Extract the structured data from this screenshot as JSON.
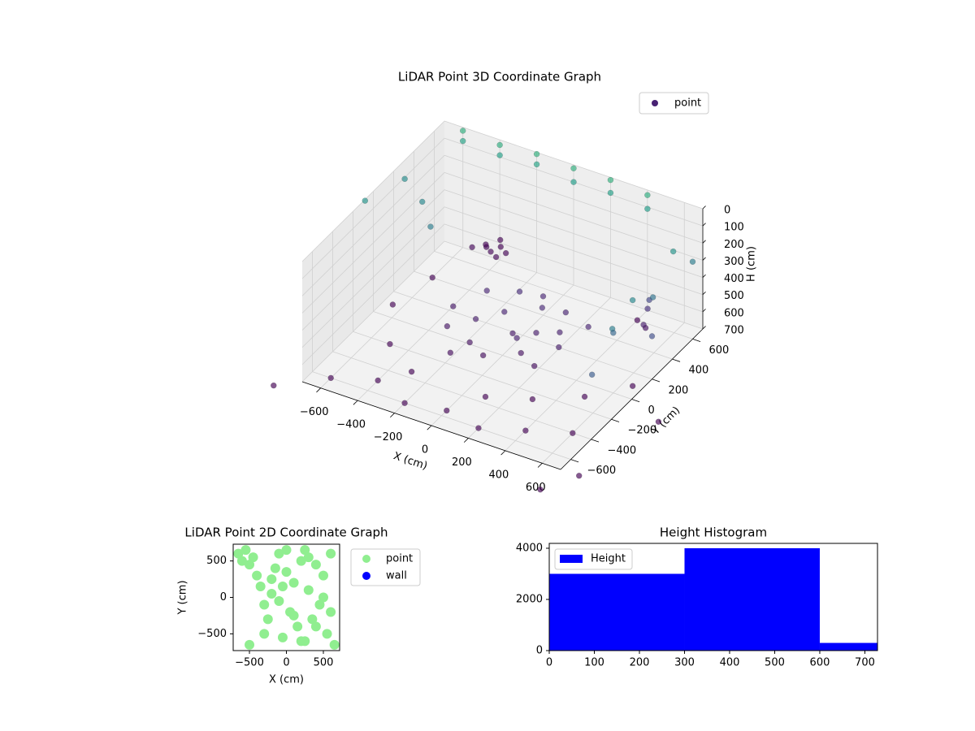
{
  "chart_data": [
    {
      "type": "scatter3d",
      "title": "LiDAR Point 3D Coordinate Graph",
      "xlabel": "X (cm)",
      "ylabel": "Y (cm)",
      "zlabel": "H (cm)",
      "xlim": [
        -700,
        700
      ],
      "ylim": [
        -700,
        700
      ],
      "zlim": [
        700,
        0
      ],
      "xticks": [
        {
          "value": -600,
          "label": "−600"
        },
        {
          "value": -400,
          "label": "−400"
        },
        {
          "value": -200,
          "label": "−200"
        },
        0,
        200,
        400,
        600
      ],
      "yticks": [
        {
          "value": -600,
          "label": "−600"
        },
        {
          "value": -400,
          "label": "−400"
        },
        {
          "value": -200,
          "label": "−200"
        },
        0,
        200,
        400,
        600
      ],
      "zticks": [
        0,
        100,
        200,
        300,
        400,
        500,
        600,
        700
      ],
      "grid": true,
      "colormap": "viridis",
      "legend": "upper right",
      "series": [
        {
          "name": "point",
          "color": "#482173",
          "x": [
            -300,
            -200,
            -100,
            0,
            100,
            200,
            -250,
            150,
            -50,
            50,
            -150,
            250,
            0,
            -350,
            300,
            -100,
            100,
            -200,
            200,
            50,
            -500,
            -450,
            -550,
            -400,
            -480,
            -420,
            -520,
            -460,
            500,
            500,
            520,
            500,
            -600,
            -400,
            -200,
            0,
            200,
            400,
            600,
            -500,
            -300,
            100,
            300,
            500,
            650,
            -650,
            -600,
            400,
            -800,
            800,
            700,
            900,
            -600,
            -400,
            -200,
            0,
            200,
            400,
            -600,
            -400,
            -200,
            0,
            200,
            400,
            -800,
            -750,
            -600,
            -500,
            650,
            650,
            650,
            650,
            700,
            650,
            600,
            700
          ],
          "y": [
            0,
            100,
            200,
            100,
            0,
            200,
            300,
            350,
            -100,
            300,
            -50,
            100,
            400,
            150,
            300,
            350,
            150,
            -150,
            -50,
            50,
            750,
            800,
            700,
            760,
            850,
            700,
            780,
            720,
            500,
            520,
            500,
            480,
            -600,
            -500,
            -600,
            -550,
            -600,
            -500,
            -400,
            -200,
            -350,
            -350,
            -250,
            -100,
            100,
            100,
            400,
            600,
            -800,
            -700,
            -900,
            -100,
            700,
            700,
            700,
            700,
            700,
            700,
            700,
            700,
            700,
            700,
            700,
            700,
            100,
            400,
            300,
            200,
            -100,
            100,
            300,
            500,
            600,
            -300,
            0,
            200
          ],
          "z": [
            640,
            620,
            600,
            630,
            650,
            610,
            590,
            600,
            660,
            580,
            650,
            620,
            590,
            630,
            600,
            570,
            620,
            670,
            660,
            610,
            690,
            700,
            680,
            695,
            700,
            690,
            700,
            685,
            650,
            550,
            480,
            620,
            700,
            700,
            700,
            700,
            700,
            700,
            700,
            700,
            700,
            700,
            700,
            700,
            700,
            700,
            700,
            700,
            700,
            700,
            700,
            700,
            20,
            30,
            10,
            20,
            15,
            30,
            80,
            90,
            70,
            100,
            90,
            110,
            150,
            180,
            200,
            250,
            250,
            200,
            300,
            150,
            250,
            400,
            350,
            450
          ]
        }
      ]
    },
    {
      "type": "scatter",
      "title": "LiDAR Point 2D Coordinate Graph",
      "xlabel": "X (cm)",
      "ylabel": "Y (cm)",
      "xlim": [
        -720,
        720
      ],
      "ylim": [
        -730,
        730
      ],
      "xticks": [
        {
          "value": -500,
          "label": "−500"
        },
        0,
        500
      ],
      "yticks": [
        {
          "value": -500,
          "label": "−500"
        },
        0,
        500
      ],
      "legend": "outside right",
      "series": [
        {
          "name": "point",
          "color": "#90ee90",
          "x": [
            -650,
            -600,
            -550,
            -500,
            -450,
            -400,
            -350,
            -300,
            -250,
            -200,
            -150,
            -100,
            -50,
            0,
            50,
            100,
            150,
            200,
            250,
            300,
            350,
            400,
            450,
            500,
            550,
            600,
            650,
            -300,
            -100,
            100,
            300,
            500,
            -200,
            0,
            200,
            400,
            -500,
            600,
            250,
            -50
          ],
          "y": [
            600,
            500,
            650,
            450,
            550,
            300,
            150,
            -100,
            -300,
            50,
            400,
            600,
            -550,
            650,
            -200,
            200,
            -400,
            500,
            -600,
            100,
            -300,
            450,
            -100,
            300,
            -500,
            600,
            -650,
            -500,
            -50,
            -250,
            550,
            0,
            250,
            350,
            -600,
            -400,
            -650,
            -200,
            650,
            150
          ]
        },
        {
          "name": "wall",
          "color": "#0000ff",
          "x": [],
          "y": []
        }
      ]
    },
    {
      "type": "histogram",
      "title": "Height Histogram",
      "bins": [
        0,
        300,
        600,
        728
      ],
      "series": [
        {
          "name": "Height",
          "color": "#0000ff",
          "values": [
            3000,
            4000,
            300
          ]
        }
      ],
      "xlim": [
        0,
        728
      ],
      "ylim": [
        0,
        4190
      ],
      "xticks": [
        0,
        100,
        200,
        300,
        400,
        500,
        600,
        700
      ],
      "yticks": [
        0,
        2000,
        4000
      ],
      "legend": "upper left"
    }
  ]
}
